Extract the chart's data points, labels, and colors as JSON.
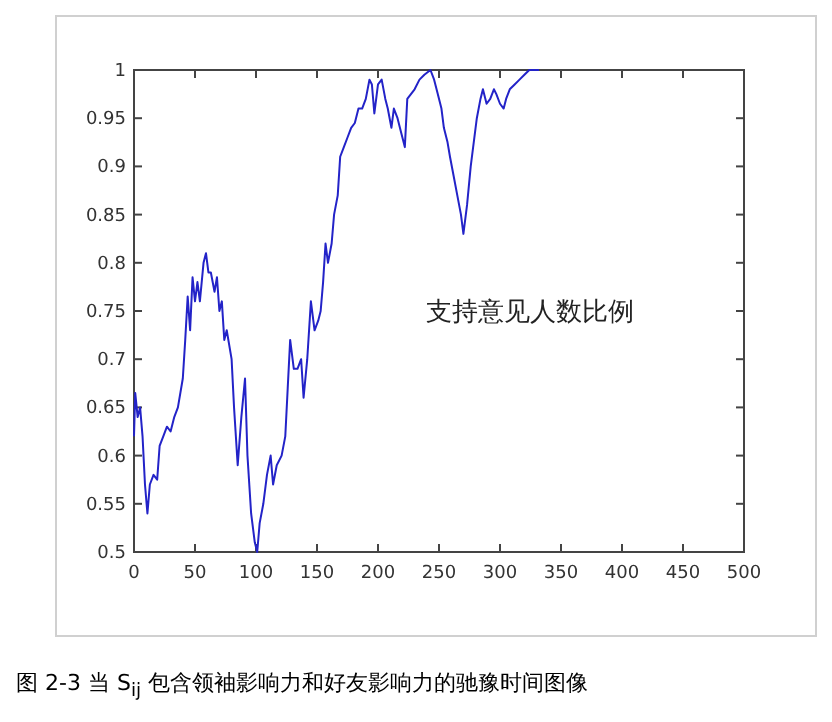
{
  "chart_data": {
    "type": "line",
    "x": [
      0,
      1,
      3,
      5,
      7,
      9,
      11,
      13,
      16,
      19,
      21,
      24,
      27,
      30,
      33,
      36,
      40,
      42,
      44,
      46,
      48,
      50,
      52,
      54,
      57,
      59,
      61,
      63,
      66,
      68,
      70,
      72,
      74,
      76,
      80,
      82,
      85,
      88,
      91,
      93,
      96,
      99,
      101,
      103,
      106,
      109,
      112,
      114,
      117,
      121,
      124,
      126,
      128,
      131,
      134,
      137,
      139,
      142,
      145,
      148,
      151,
      153,
      155,
      157,
      159,
      162,
      164,
      167,
      169,
      172,
      175,
      178,
      181,
      184,
      187,
      190,
      193,
      195,
      197,
      200,
      203,
      206,
      208,
      211,
      213,
      216,
      219,
      222,
      224,
      227,
      230,
      234,
      238,
      243,
      246,
      249,
      252,
      254,
      257,
      259,
      262,
      265,
      268,
      270,
      273,
      276,
      279,
      281,
      284,
      286,
      289,
      292,
      295,
      297,
      300,
      303,
      305,
      308,
      312,
      316,
      320,
      324,
      328,
      332
    ],
    "series": [
      {
        "color": "#2323c8",
        "values": [
          0.62,
          0.665,
          0.64,
          0.65,
          0.62,
          0.57,
          0.54,
          0.57,
          0.58,
          0.575,
          0.61,
          0.62,
          0.63,
          0.625,
          0.64,
          0.65,
          0.68,
          0.72,
          0.765,
          0.73,
          0.785,
          0.76,
          0.78,
          0.76,
          0.8,
          0.81,
          0.79,
          0.79,
          0.77,
          0.785,
          0.75,
          0.76,
          0.72,
          0.73,
          0.7,
          0.65,
          0.59,
          0.64,
          0.68,
          0.6,
          0.54,
          0.51,
          0.5,
          0.53,
          0.55,
          0.58,
          0.6,
          0.57,
          0.59,
          0.6,
          0.62,
          0.67,
          0.72,
          0.69,
          0.69,
          0.7,
          0.66,
          0.7,
          0.76,
          0.73,
          0.74,
          0.75,
          0.78,
          0.82,
          0.8,
          0.82,
          0.85,
          0.87,
          0.91,
          0.92,
          0.93,
          0.94,
          0.945,
          0.96,
          0.96,
          0.97,
          0.99,
          0.985,
          0.955,
          0.985,
          0.99,
          0.97,
          0.96,
          0.94,
          0.96,
          0.95,
          0.935,
          0.92,
          0.97,
          0.975,
          0.98,
          0.99,
          0.995,
          1.0,
          0.99,
          0.975,
          0.96,
          0.94,
          0.925,
          0.91,
          0.89,
          0.87,
          0.85,
          0.83,
          0.86,
          0.9,
          0.93,
          0.95,
          0.97,
          0.98,
          0.965,
          0.97,
          0.98,
          0.975,
          0.965,
          0.96,
          0.97,
          0.98,
          0.985,
          0.99,
          0.995,
          1.0,
          1.0,
          1.0
        ]
      }
    ],
    "xlim": [
      0,
      500
    ],
    "xticks": [
      0,
      50,
      100,
      150,
      200,
      250,
      300,
      350,
      400,
      450,
      500
    ],
    "ylim": [
      0.5,
      1
    ],
    "yticks": [
      0.5,
      0.55,
      0.6,
      0.65,
      0.7,
      0.75,
      0.8,
      0.85,
      0.9,
      0.95,
      1
    ],
    "grid": false,
    "marker": "none",
    "line_style": "solid",
    "annotations": [
      "支持意见人数比例",
      "图 2-3 当 S$_{ij}$ 包含领袖影响力和好友影响力的驰豫时间图像"
    ]
  }
}
